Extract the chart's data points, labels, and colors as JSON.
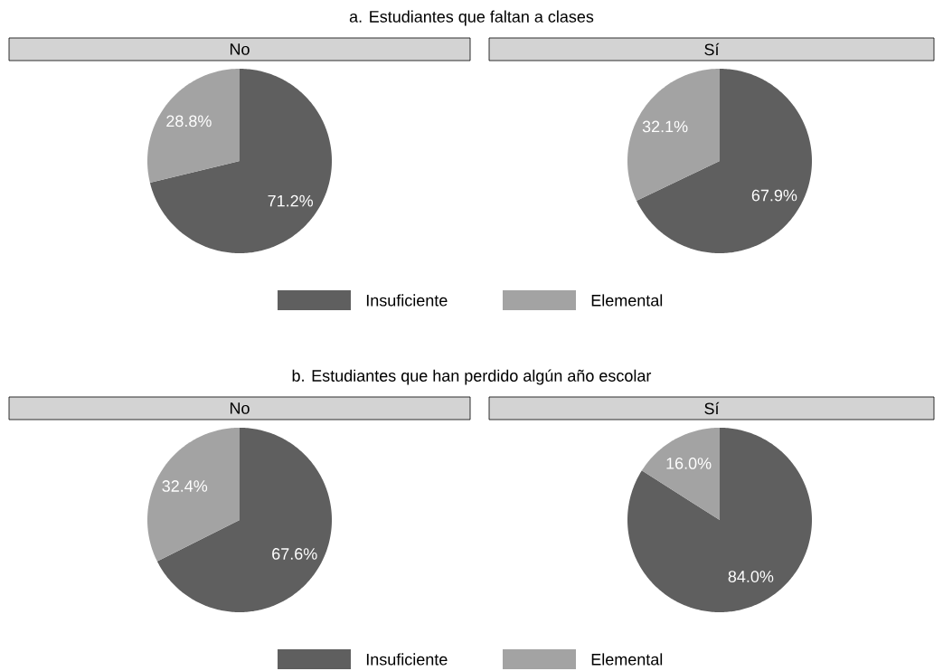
{
  "chart_data": [
    {
      "type": "pie",
      "title": "a. Estudiantes que faltan a clases",
      "subtitle": "No",
      "categories": [
        "Insuficiente",
        "Elemental"
      ],
      "values": [
        71.2,
        28.8
      ],
      "colors": [
        "#5f5f5f",
        "#a3a3a3"
      ],
      "value_labels": [
        "71.2%",
        "28.8%"
      ],
      "legend": "bottom"
    },
    {
      "type": "pie",
      "subtitle": "Sí",
      "values": [
        67.9,
        32.1
      ],
      "colors": [
        "#5f5f5f",
        "#a3a3a3"
      ],
      "value_labels": [
        "67.9%",
        "32.1%"
      ]
    },
    {
      "type": "pie",
      "title": "b. Estudiantes que han perdido algún año escolar",
      "subtitle": "No",
      "categories": [
        "Insuficiente",
        "Elemental"
      ],
      "values": [
        67.6,
        32.4
      ],
      "colors": [
        "#5f5f5f",
        "#a3a3a3"
      ],
      "value_labels": [
        "67.6%",
        "32.4%"
      ],
      "legend": "bottom"
    },
    {
      "type": "pie",
      "subtitle": "Sí",
      "values": [
        84.0,
        16.0
      ],
      "colors": [
        "#5f5f5f",
        "#a3a3a3"
      ],
      "value_labels": [
        "84.0%",
        "16.0%"
      ]
    }
  ]
}
